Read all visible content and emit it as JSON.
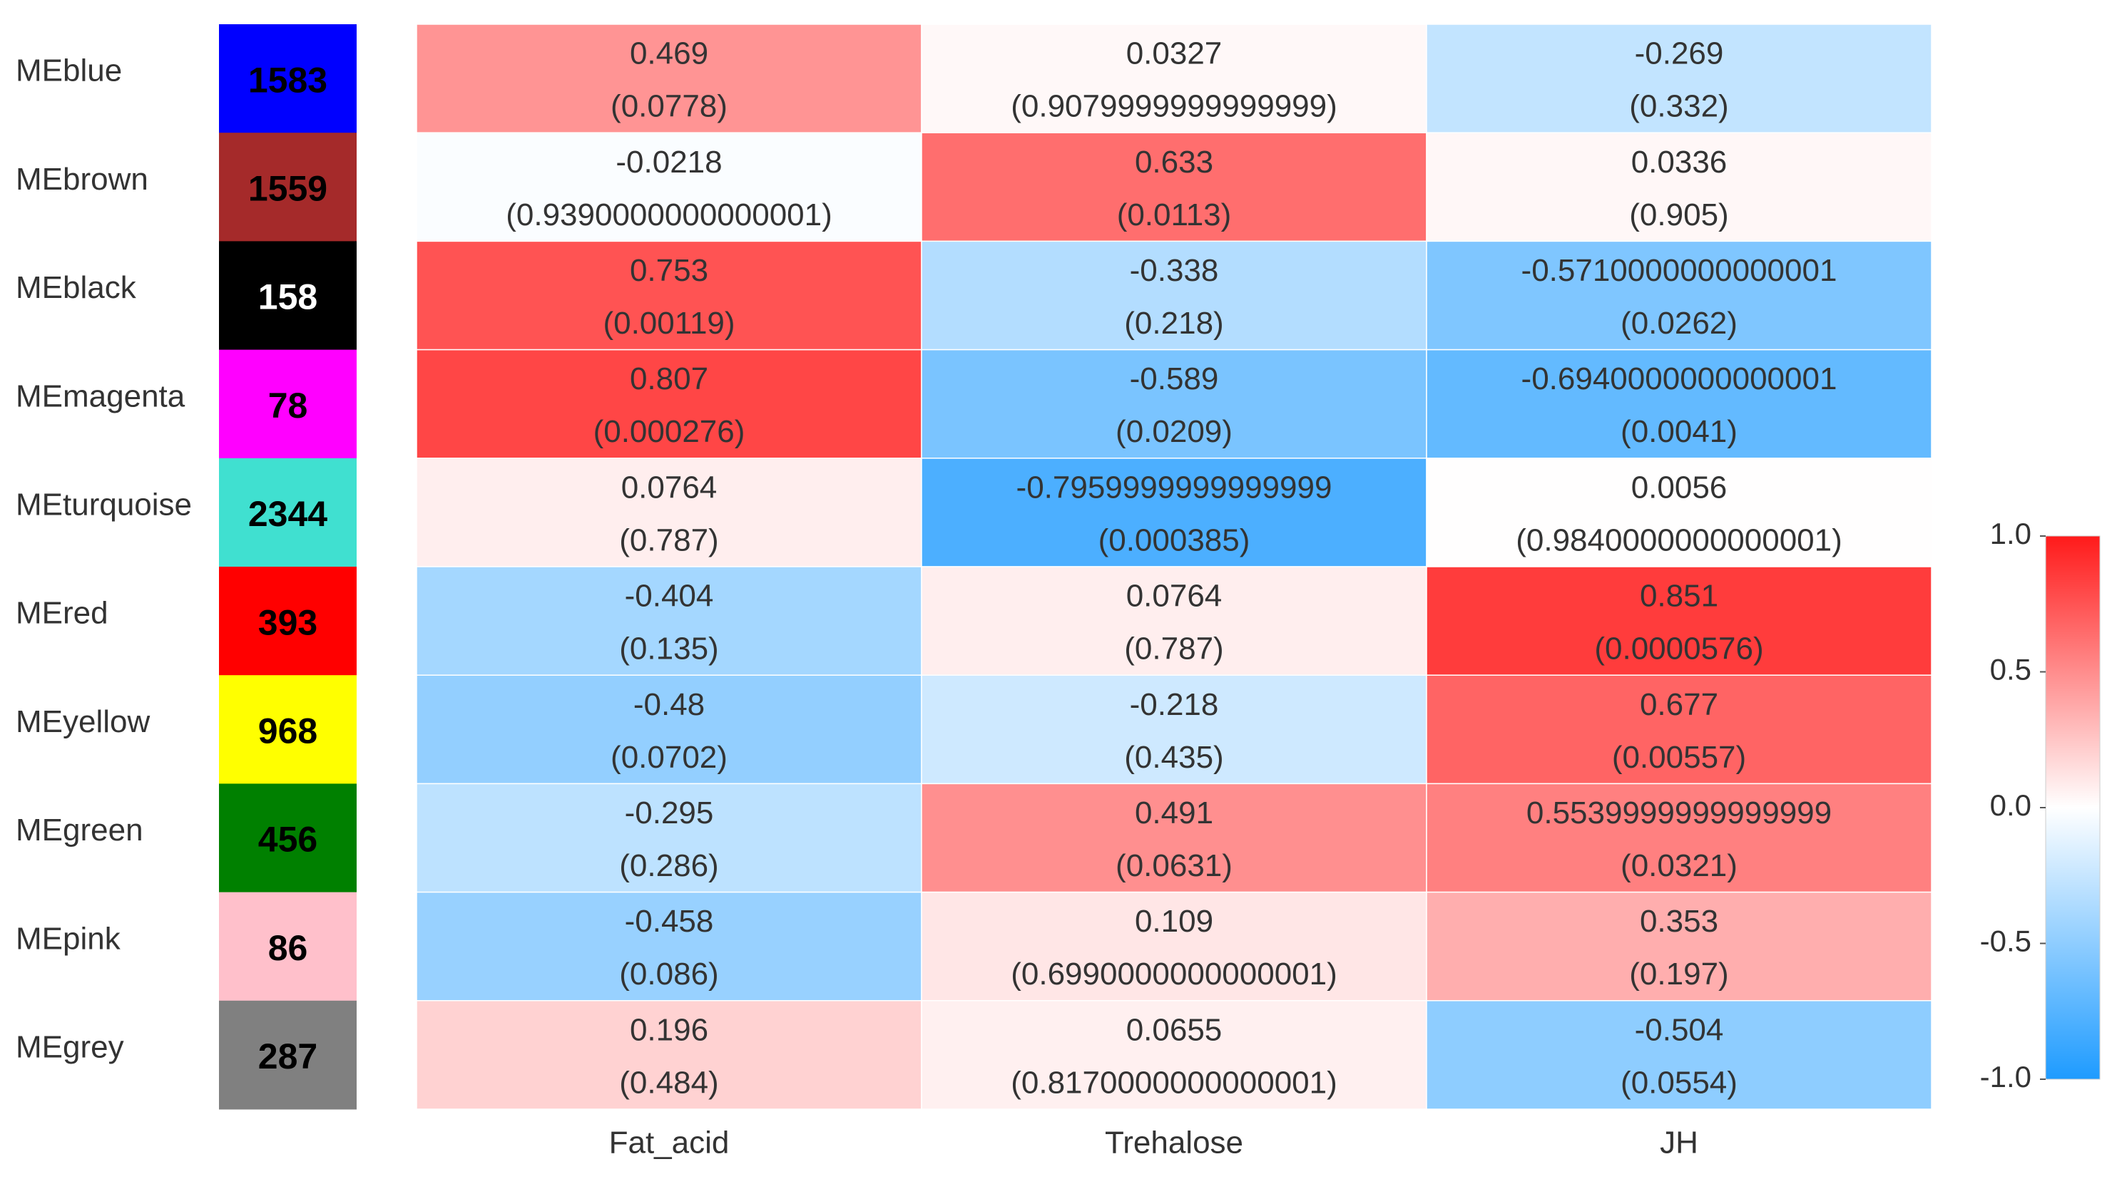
{
  "chart_data": {
    "type": "heatmap",
    "title": "",
    "columns": [
      "Fat_acid",
      "Trehalose",
      "JH"
    ],
    "rows": [
      {
        "label": "MEblue",
        "module_color": "#0000ff",
        "count": "1583",
        "count_text_color": "#000000",
        "values": [
          "0.469",
          "0.0327",
          "-0.269"
        ],
        "pvalues": [
          "(0.0778)",
          "(0.9079999999999999)",
          "(0.332)"
        ]
      },
      {
        "label": "MEbrown",
        "module_color": "#a52a2a",
        "count": "1559",
        "count_text_color": "#000000",
        "values": [
          "-0.0218",
          "0.633",
          "0.0336"
        ],
        "pvalues": [
          "(0.9390000000000001)",
          "(0.0113)",
          "(0.905)"
        ]
      },
      {
        "label": "MEblack",
        "module_color": "#000000",
        "count": "158",
        "count_text_color": "#ffffff",
        "values": [
          "0.753",
          "-0.338",
          "-0.5710000000000001"
        ],
        "pvalues": [
          "(0.00119)",
          "(0.218)",
          "(0.0262)"
        ]
      },
      {
        "label": "MEmagenta",
        "module_color": "#ff00ff",
        "count": "78",
        "count_text_color": "#000000",
        "values": [
          "0.807",
          "-0.589",
          "-0.6940000000000001"
        ],
        "pvalues": [
          "(0.000276)",
          "(0.0209)",
          "(0.0041)"
        ]
      },
      {
        "label": "MEturquoise",
        "module_color": "#40e0d0",
        "count": "2344",
        "count_text_color": "#000000",
        "values": [
          "0.0764",
          "-0.7959999999999999",
          "0.0056"
        ],
        "pvalues": [
          "(0.787)",
          "(0.000385)",
          "(0.9840000000000001)"
        ]
      },
      {
        "label": "MEred",
        "module_color": "#ff0000",
        "count": "393",
        "count_text_color": "#000000",
        "values": [
          "-0.404",
          "0.0764",
          "0.851"
        ],
        "pvalues": [
          "(0.135)",
          "(0.787)",
          "(0.0000576)"
        ]
      },
      {
        "label": "MEyellow",
        "module_color": "#ffff00",
        "count": "968",
        "count_text_color": "#000000",
        "values": [
          "-0.48",
          "-0.218",
          "0.677"
        ],
        "pvalues": [
          "(0.0702)",
          "(0.435)",
          "(0.00557)"
        ]
      },
      {
        "label": "MEgreen",
        "module_color": "#008000",
        "count": "456",
        "count_text_color": "#000000",
        "values": [
          "-0.295",
          "0.491",
          "0.5539999999999999"
        ],
        "pvalues": [
          "(0.286)",
          "(0.0631)",
          "(0.0321)"
        ]
      },
      {
        "label": "MEpink",
        "module_color": "#ffc0cb",
        "count": "86",
        "count_text_color": "#000000",
        "values": [
          "-0.458",
          "0.109",
          "0.353"
        ],
        "pvalues": [
          "(0.086)",
          "(0.6990000000000001)",
          "(0.197)"
        ]
      },
      {
        "label": "MEgrey",
        "module_color": "#808080",
        "count": "287",
        "count_text_color": "#000000",
        "values": [
          "0.196",
          "0.0655",
          "-0.504"
        ],
        "pvalues": [
          "(0.484)",
          "(0.8170000000000001)",
          "(0.0554)"
        ]
      }
    ],
    "colorbar": {
      "range": [
        -1.0,
        1.0
      ],
      "ticks": [
        "1.0",
        "0.5",
        "0.0",
        "-0.5",
        "-1.0"
      ],
      "colors": {
        "low": "#1e9bff",
        "mid": "#ffffff",
        "high": "#ff1a1a"
      }
    }
  }
}
